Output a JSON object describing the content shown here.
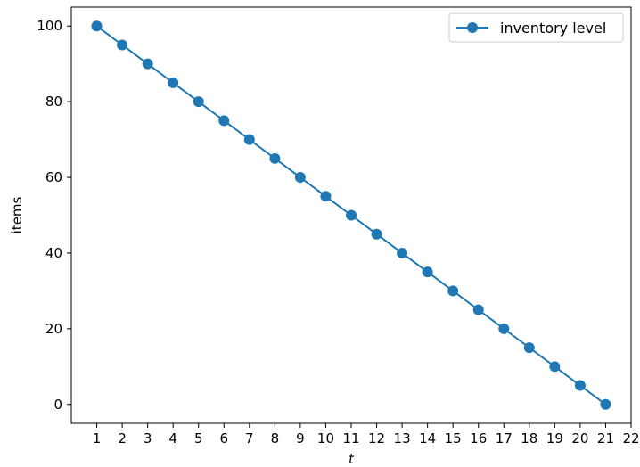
{
  "chart_data": {
    "type": "line",
    "title": "",
    "xlabel": "t",
    "ylabel": "items",
    "xlim": [
      0,
      22
    ],
    "ylim": [
      -5,
      105
    ],
    "x_ticks": [
      1,
      2,
      3,
      4,
      5,
      6,
      7,
      8,
      9,
      10,
      11,
      12,
      13,
      14,
      15,
      16,
      17,
      18,
      19,
      20,
      21,
      22
    ],
    "y_ticks": [
      0,
      20,
      40,
      60,
      80,
      100
    ],
    "grid": false,
    "legend_position": "top-right",
    "colors": {
      "series": "#1f77b4",
      "axes": "#000000",
      "background": "#ffffff"
    },
    "series": [
      {
        "name": "inventory level",
        "marker": "circle",
        "x": [
          1,
          2,
          3,
          4,
          5,
          6,
          7,
          8,
          9,
          10,
          11,
          12,
          13,
          14,
          15,
          16,
          17,
          18,
          19,
          20,
          21
        ],
        "y": [
          100,
          95,
          90,
          85,
          80,
          75,
          70,
          65,
          60,
          55,
          50,
          45,
          40,
          35,
          30,
          25,
          20,
          15,
          10,
          5,
          0
        ]
      }
    ]
  }
}
